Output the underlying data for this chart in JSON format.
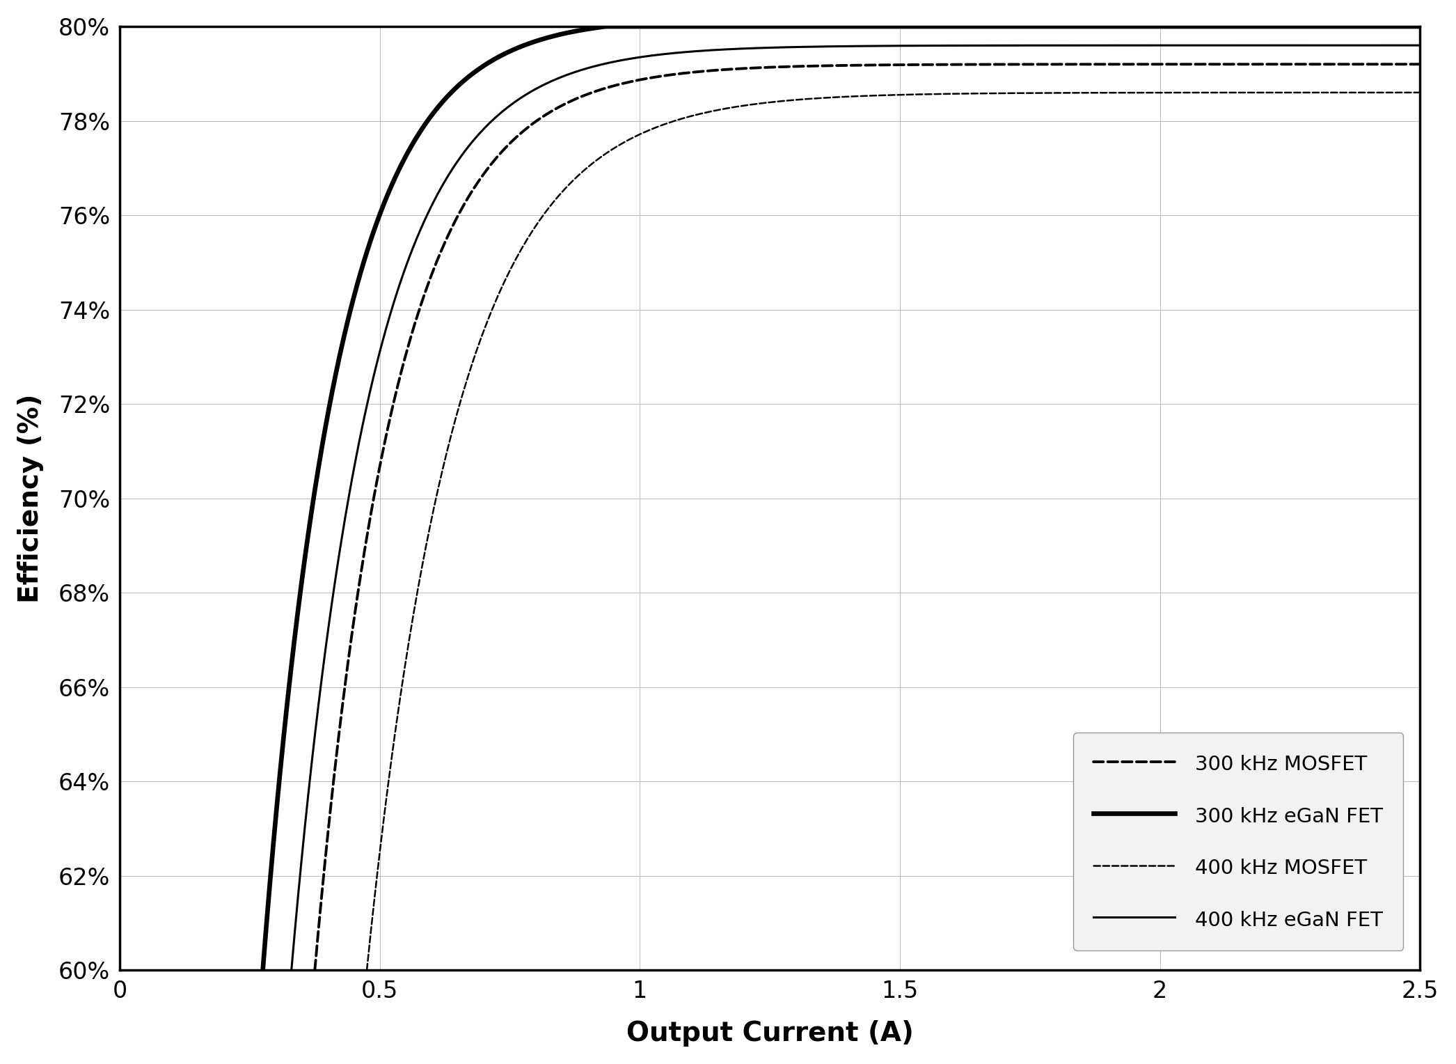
{
  "xlabel": "Output Current (A)",
  "ylabel": "Efficiency (%)",
  "xlim": [
    0,
    2.5
  ],
  "ylim": [
    60,
    80
  ],
  "xticks": [
    0,
    0.5,
    1.0,
    1.5,
    2.0,
    2.5
  ],
  "yticks": [
    60,
    62,
    64,
    66,
    68,
    70,
    72,
    74,
    76,
    78,
    80
  ],
  "background_color": "#ffffff",
  "grid_color": "#bbbbbb",
  "curves": [
    {
      "label": "300 kHz MOSFET",
      "linestyle": "--",
      "linewidth": 2.8,
      "color": "#000000",
      "x_start": 0.375,
      "asymptote": 79.2,
      "rate": 6.5,
      "shift": 0.375
    },
    {
      "label": "300 kHz eGaN FET",
      "linestyle": "-",
      "linewidth": 4.8,
      "color": "#000000",
      "x_start": 0.275,
      "asymptote": 80.2,
      "rate": 7.0,
      "shift": 0.275
    },
    {
      "label": "400 kHz MOSFET",
      "linestyle": "--",
      "linewidth": 1.8,
      "color": "#000000",
      "x_start": 0.475,
      "asymptote": 78.6,
      "rate": 5.8,
      "shift": 0.475
    },
    {
      "label": "400 kHz eGaN FET",
      "linestyle": "-",
      "linewidth": 2.2,
      "color": "#000000",
      "x_start": 0.33,
      "asymptote": 79.6,
      "rate": 6.5,
      "shift": 0.33
    }
  ],
  "legend_fontsize": 21,
  "tick_fontsize": 24,
  "axis_label_fontsize": 28,
  "figsize": [
    20.92,
    15.28
  ],
  "dpi": 100
}
